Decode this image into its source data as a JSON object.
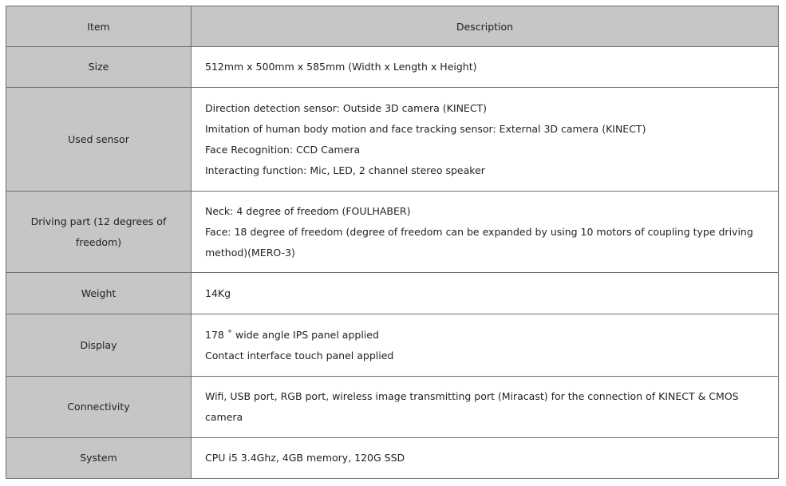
{
  "headers": {
    "item": "Item",
    "description": "Description"
  },
  "rows": [
    {
      "item": "Size",
      "lines": [
        "512mm x 500mm x 585mm (Width x Length x Height)"
      ]
    },
    {
      "item": "Used sensor",
      "lines": [
        "Direction detection sensor: Outside 3D camera (KINECT)",
        "Imitation of human body motion and face tracking sensor: External 3D camera (KINECT)",
        "Face Recognition: CCD Camera",
        "Interacting function: Mic, LED, 2 channel stereo speaker"
      ]
    },
    {
      "item": "Driving part (12 degrees of freedom)",
      "lines": [
        "Neck: 4 degree of freedom (FOULHABER)",
        "Face: 18 degree of freedom (degree of freedom can be expanded by using 10 motors of coupling type driving method)(MERO-3)"
      ]
    },
    {
      "item": "Weight",
      "lines": [
        "14Kg"
      ]
    },
    {
      "item": "Display",
      "lines": [
        "178 ˚ wide angle IPS panel applied",
        "Contact interface touch panel applied"
      ]
    },
    {
      "item": "Connectivity",
      "lines": [
        "Wifi, USB port, RGB port, wireless image transmitting port (Miracast) for the connection of KINECT & CMOS camera"
      ]
    },
    {
      "item": "System",
      "lines": [
        "CPU i5 3.4Ghz, 4GB memory, 120G SSD"
      ]
    }
  ]
}
